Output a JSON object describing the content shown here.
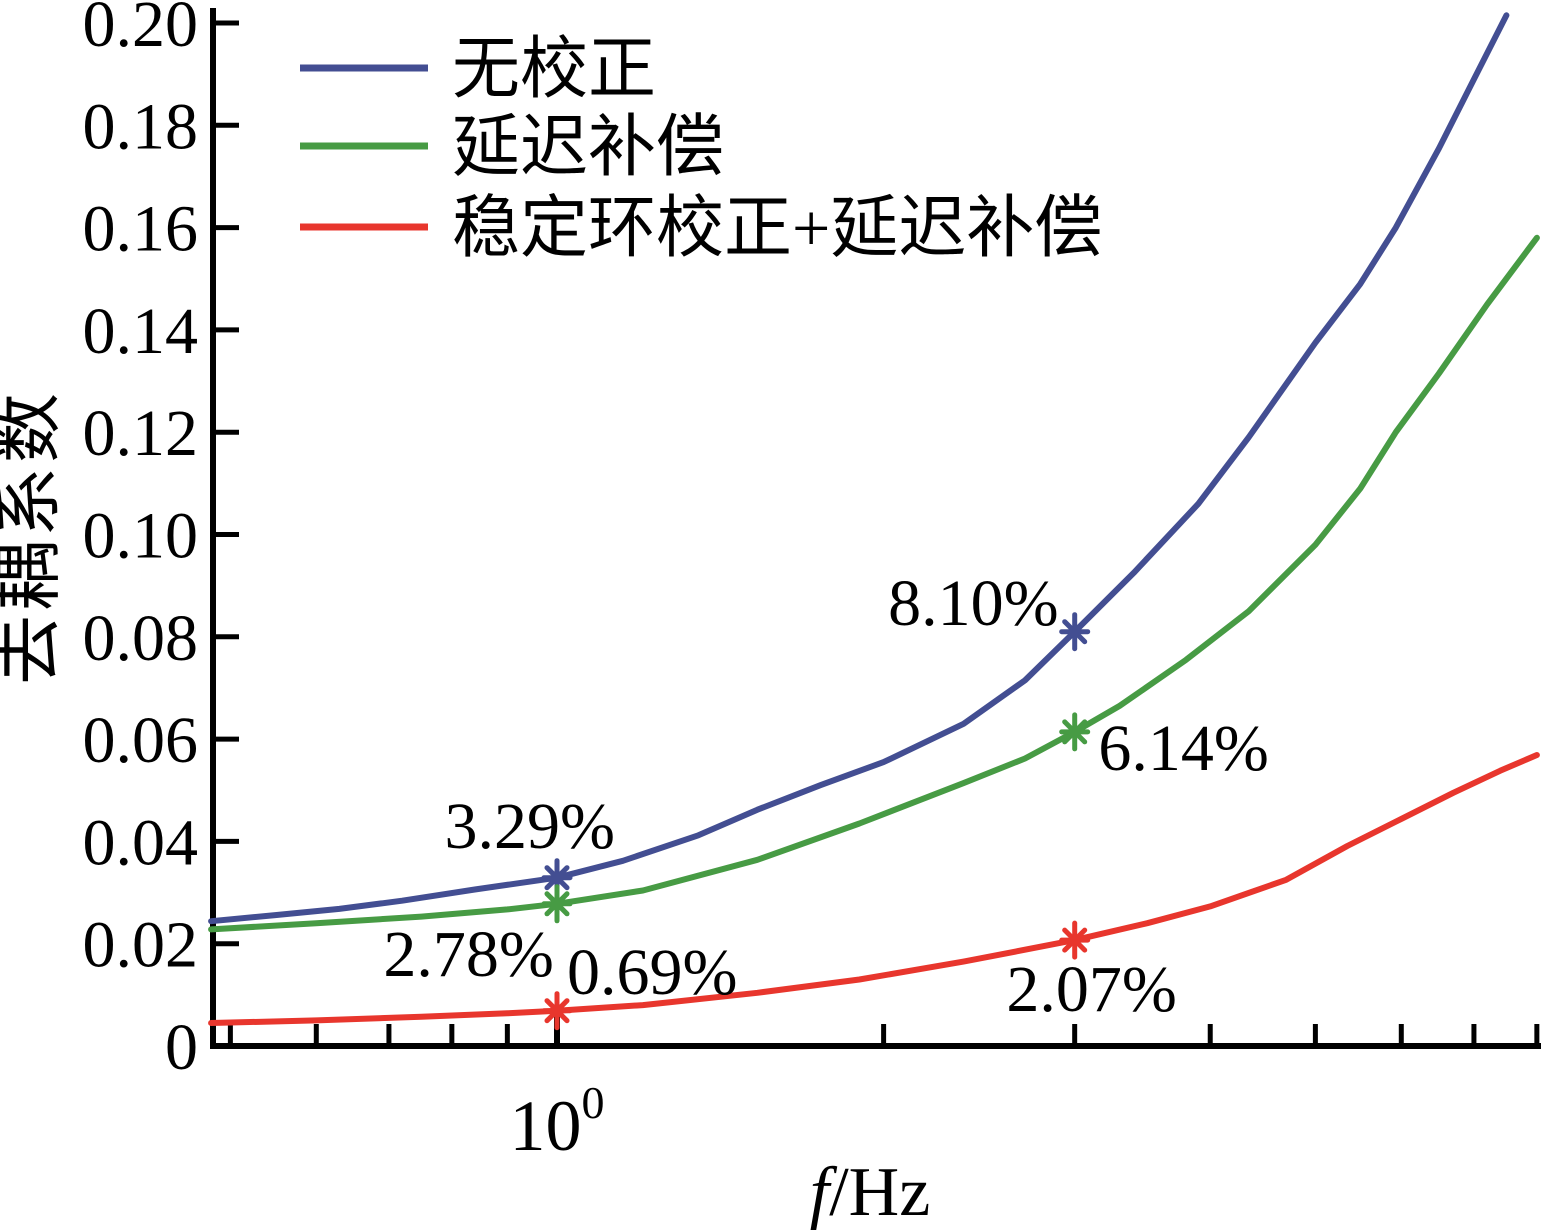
{
  "figure": {
    "background": "#ffffff"
  },
  "chart_data": {
    "type": "line",
    "title": "",
    "xlabel": "f/Hz",
    "ylabel": "去耦系数",
    "x_scale": "log",
    "x_range": [
      0.475,
      8
    ],
    "y_range": [
      0,
      0.2
    ],
    "grid": false,
    "x_major_ticks": [
      {
        "value": 1,
        "base": "10",
        "exp": "0"
      }
    ],
    "x_minor_ticks": [
      0.5,
      0.6,
      0.7,
      0.8,
      0.9,
      2,
      3,
      4,
      5,
      6,
      7,
      8
    ],
    "y_ticks": [
      {
        "value": 0,
        "label": "0"
      },
      {
        "value": 0.02,
        "label": "0.02"
      },
      {
        "value": 0.04,
        "label": "0.04"
      },
      {
        "value": 0.06,
        "label": "0.06"
      },
      {
        "value": 0.08,
        "label": "0.08"
      },
      {
        "value": 0.1,
        "label": "0.10"
      },
      {
        "value": 0.12,
        "label": "0.12"
      },
      {
        "value": 0.14,
        "label": "0.14"
      },
      {
        "value": 0.16,
        "label": "0.16"
      },
      {
        "value": 0.18,
        "label": "0.18"
      },
      {
        "value": 0.2,
        "label": "0.20"
      }
    ],
    "series": [
      {
        "name": "无校正",
        "color": "#434E92",
        "marker": "asterisk",
        "points": [
          [
            0.48,
            0.0244
          ],
          [
            0.55,
            0.0256
          ],
          [
            0.63,
            0.0268
          ],
          [
            0.72,
            0.0284
          ],
          [
            0.84,
            0.0306
          ],
          [
            1.0,
            0.0329
          ],
          [
            1.15,
            0.0362
          ],
          [
            1.35,
            0.0412
          ],
          [
            1.53,
            0.0462
          ],
          [
            1.75,
            0.051
          ],
          [
            2.0,
            0.0555
          ],
          [
            2.37,
            0.063
          ],
          [
            2.7,
            0.0715
          ],
          [
            3.0,
            0.081
          ],
          [
            3.4,
            0.0925
          ],
          [
            3.9,
            0.106
          ],
          [
            4.34,
            0.119
          ],
          [
            5.0,
            0.1375
          ],
          [
            5.5,
            0.149
          ],
          [
            5.93,
            0.16
          ],
          [
            6.5,
            0.1755
          ],
          [
            7.0,
            0.189
          ],
          [
            7.5,
            0.2015
          ]
        ],
        "marked_points": [
          [
            1.0,
            0.0329
          ],
          [
            3.0,
            0.081
          ]
        ]
      },
      {
        "name": "延迟补偿",
        "color": "#479B44",
        "marker": "asterisk",
        "points": [
          [
            0.48,
            0.0228
          ],
          [
            0.6,
            0.024
          ],
          [
            0.75,
            0.0253
          ],
          [
            0.9,
            0.0267
          ],
          [
            1.0,
            0.0278
          ],
          [
            1.2,
            0.0304
          ],
          [
            1.53,
            0.0364
          ],
          [
            1.9,
            0.0435
          ],
          [
            2.37,
            0.0514
          ],
          [
            2.7,
            0.0562
          ],
          [
            3.0,
            0.0614
          ],
          [
            3.3,
            0.0665
          ],
          [
            3.8,
            0.0755
          ],
          [
            4.34,
            0.085
          ],
          [
            5.0,
            0.098
          ],
          [
            5.5,
            0.109
          ],
          [
            5.93,
            0.12
          ],
          [
            6.5,
            0.1315
          ],
          [
            7.2,
            0.145
          ],
          [
            8.0,
            0.158
          ]
        ],
        "marked_points": [
          [
            1.0,
            0.0278
          ],
          [
            3.0,
            0.0614
          ]
        ]
      },
      {
        "name": "稳定环校正+延迟补偿",
        "color": "#E8362D",
        "marker": "asterisk",
        "points": [
          [
            0.48,
            0.0045
          ],
          [
            0.6,
            0.005
          ],
          [
            0.75,
            0.0057
          ],
          [
            0.9,
            0.0064
          ],
          [
            1.0,
            0.0069
          ],
          [
            1.2,
            0.008
          ],
          [
            1.53,
            0.0104
          ],
          [
            1.9,
            0.013
          ],
          [
            2.37,
            0.0165
          ],
          [
            3.0,
            0.0207
          ],
          [
            3.5,
            0.024
          ],
          [
            4.0,
            0.0273
          ],
          [
            4.7,
            0.0325
          ],
          [
            5.35,
            0.0391
          ],
          [
            6.0,
            0.0444
          ],
          [
            6.7,
            0.0495
          ],
          [
            7.4,
            0.0538
          ],
          [
            8.0,
            0.0569
          ]
        ],
        "marked_points": [
          [
            1.0,
            0.0069
          ],
          [
            3.0,
            0.0207
          ]
        ]
      }
    ],
    "annotations": [
      {
        "text": "3.29%",
        "f": 0.944,
        "v": 0.0432
      },
      {
        "text": "2.78%",
        "f": 0.829,
        "v": 0.0182
      },
      {
        "text": "0.69%",
        "f": 1.224,
        "v": 0.0147
      },
      {
        "text": "8.10%",
        "f": 2.42,
        "v": 0.0868
      },
      {
        "text": "6.14%",
        "f": 3.78,
        "v": 0.0585
      },
      {
        "text": "2.07%",
        "f": 3.11,
        "v": 0.0113
      }
    ],
    "legend": {
      "position": "top-left",
      "border": false,
      "items": [
        {
          "label": "无校正",
          "color": "#434E92"
        },
        {
          "label": "延迟补偿",
          "color": "#479B44"
        },
        {
          "label": "稳定环校正+延迟补偿",
          "color": "#E8362D"
        }
      ]
    }
  }
}
